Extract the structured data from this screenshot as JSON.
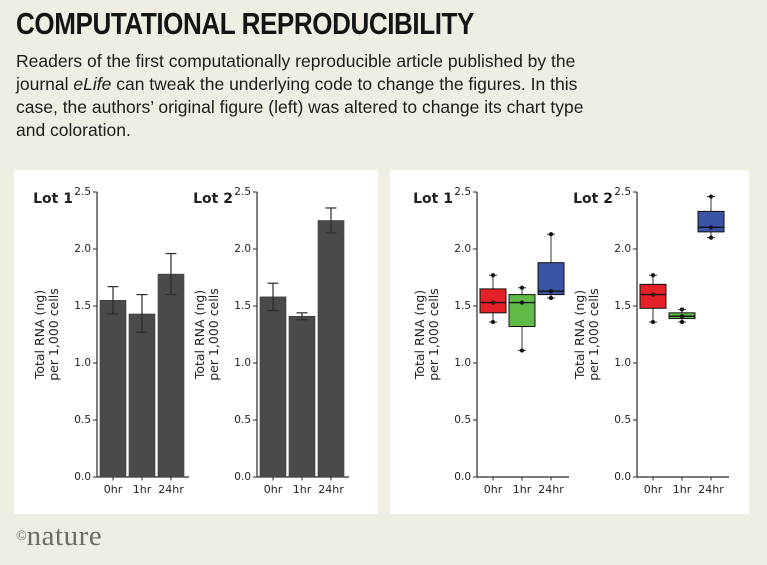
{
  "header": {
    "title": "COMPUTATIONAL REPRODUCIBILITY"
  },
  "intro": {
    "text_before": "Readers of the first computationally reproducible article published by the\njournal ",
    "journal": "eLife",
    "text_after": " can tweak the underlying code to change the figures. In this\ncase, the authors’ original figure (left) was altered to change its chart type\nand coloration."
  },
  "footer": {
    "copyright": "©",
    "brand": "nature"
  },
  "colors": {
    "page_bg": "#f0ede3",
    "panel_bg": "#ffffff",
    "bar_gray": "#4a4a4a",
    "box_red": "#e32127",
    "box_green": "#5fbb46",
    "box_blue": "#3a53a4",
    "axis": "#2b2b2b"
  },
  "chart_data": [
    {
      "type": "bar",
      "panel": "original",
      "title": "Lot 1",
      "categories": [
        "0hr",
        "1hr",
        "24hr"
      ],
      "values": [
        1.55,
        1.43,
        1.78
      ],
      "err_low": [
        1.43,
        1.27,
        1.6
      ],
      "err_high": [
        1.67,
        1.6,
        1.96
      ],
      "bar_color": "#4a4a4a",
      "ylabel_line1": "Total RNA (ng)",
      "ylabel_line2": "per 1,000 cells",
      "ylim": [
        0,
        2.5
      ],
      "yticks": [
        "0.0",
        "0.5",
        "1.0",
        "1.5",
        "2.0",
        "2.5"
      ],
      "grid": false
    },
    {
      "type": "bar",
      "panel": "original",
      "title": "Lot 2",
      "categories": [
        "0hr",
        "1hr",
        "24hr"
      ],
      "values": [
        1.58,
        1.41,
        2.25
      ],
      "err_low": [
        1.46,
        1.38,
        2.14
      ],
      "err_high": [
        1.7,
        1.44,
        2.36
      ],
      "bar_color": "#4a4a4a",
      "ylabel_line1": "Total RNA (ng)",
      "ylabel_line2": "per 1,000 cells",
      "ylim": [
        0,
        2.5
      ],
      "yticks": [
        "0.0",
        "0.5",
        "1.0",
        "1.5",
        "2.0",
        "2.5"
      ],
      "grid": false
    },
    {
      "type": "box",
      "panel": "altered",
      "title": "Lot 1",
      "categories": [
        "0hr",
        "1hr",
        "24hr"
      ],
      "boxes": [
        {
          "label": "0hr",
          "color": "#e32127",
          "whisker_low": 1.36,
          "q1": 1.44,
          "median": 1.53,
          "q3": 1.65,
          "whisker_high": 1.77,
          "points": [
            1.36,
            1.53,
            1.77
          ]
        },
        {
          "label": "1hr",
          "color": "#5fbb46",
          "whisker_low": 1.11,
          "q1": 1.32,
          "median": 1.53,
          "q3": 1.6,
          "whisker_high": 1.66,
          "points": [
            1.11,
            1.53,
            1.66
          ]
        },
        {
          "label": "24hr",
          "color": "#3a53a4",
          "whisker_low": 1.57,
          "q1": 1.6,
          "median": 1.63,
          "q3": 1.88,
          "whisker_high": 2.13,
          "points": [
            1.57,
            1.63,
            2.13
          ]
        }
      ],
      "ylabel_line1": "Total RNA (ng)",
      "ylabel_line2": "per 1,000 cells",
      "ylim": [
        0,
        2.5
      ],
      "yticks": [
        "0.0",
        "0.5",
        "1.0",
        "1.5",
        "2.0",
        "2.5"
      ],
      "grid": false
    },
    {
      "type": "box",
      "panel": "altered",
      "title": "Lot 2",
      "categories": [
        "0hr",
        "1hr",
        "24hr"
      ],
      "boxes": [
        {
          "label": "0hr",
          "color": "#e32127",
          "whisker_low": 1.36,
          "q1": 1.48,
          "median": 1.6,
          "q3": 1.69,
          "whisker_high": 1.77,
          "points": [
            1.36,
            1.6,
            1.77
          ]
        },
        {
          "label": "1hr",
          "color": "#5fbb46",
          "whisker_low": 1.36,
          "q1": 1.39,
          "median": 1.41,
          "q3": 1.44,
          "whisker_high": 1.47,
          "points": [
            1.36,
            1.41,
            1.47
          ]
        },
        {
          "label": "24hr",
          "color": "#3a53a4",
          "whisker_low": 2.1,
          "q1": 2.15,
          "median": 2.19,
          "q3": 2.33,
          "whisker_high": 2.46,
          "points": [
            2.1,
            2.19,
            2.46
          ]
        }
      ],
      "ylabel_line1": "Total RNA (ng)",
      "ylabel_line2": "per 1,000 cells",
      "ylim": [
        0,
        2.5
      ],
      "yticks": [
        "0.0",
        "0.5",
        "1.0",
        "1.5",
        "2.0",
        "2.5"
      ],
      "grid": false
    }
  ]
}
